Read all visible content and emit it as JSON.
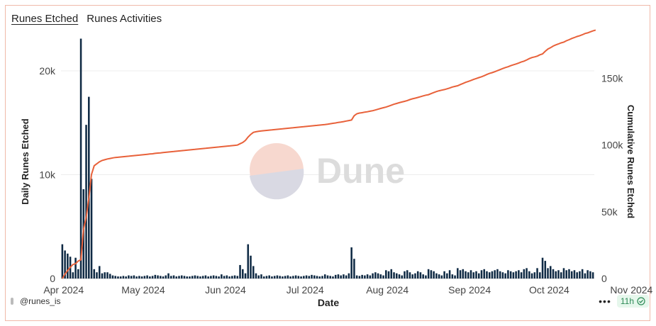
{
  "tabs": [
    {
      "label": "Runes Etched",
      "active": true
    },
    {
      "label": "Runes Activities",
      "active": false
    }
  ],
  "footer": {
    "handle": "@runes_is",
    "more": "•••",
    "freshness": "11h"
  },
  "watermark": "Dune",
  "chart_data": {
    "type": "bar+line",
    "xlabel": "Date",
    "ylabel_left": "Daily Runes Etched",
    "ylabel_right": "Cumulative Runes Etched",
    "ylim_left": [
      0,
      23000
    ],
    "ylim_right": [
      0,
      179000
    ],
    "yticks_left": [
      "0",
      "10k",
      "20k"
    ],
    "yticks_right": [
      "0",
      "50k",
      "100k",
      "150k"
    ],
    "xticks": [
      "Apr 2024",
      "May 2024",
      "Jun 2024",
      "Jul 2024",
      "Aug 2024",
      "Sep 2024",
      "Oct 2024",
      "Nov 2024"
    ],
    "x_start": "2024-03-31",
    "bar_color": "#0f2a44",
    "line_color": "#e8613a",
    "daily": [
      3300,
      2700,
      2400,
      2100,
      600,
      2000,
      900,
      23100,
      8600,
      14800,
      17500,
      9600,
      900,
      600,
      1200,
      500,
      600,
      600,
      450,
      300,
      250,
      200,
      200,
      250,
      200,
      300,
      250,
      300,
      200,
      250,
      200,
      250,
      300,
      200,
      250,
      350,
      300,
      250,
      200,
      300,
      500,
      250,
      300,
      200,
      250,
      300,
      250,
      200,
      200,
      250,
      300,
      250,
      200,
      250,
      300,
      200,
      250,
      300,
      250,
      200,
      400,
      250,
      300,
      200,
      250,
      300,
      250,
      1300,
      900,
      500,
      3300,
      2200,
      1200,
      500,
      300,
      400,
      200,
      250,
      300,
      200,
      250,
      300,
      250,
      200,
      250,
      300,
      200,
      250,
      300,
      250,
      200,
      250,
      300,
      250,
      350,
      300,
      250,
      200,
      250,
      400,
      300,
      250,
      200,
      350,
      400,
      300,
      400,
      300,
      500,
      3000,
      1900,
      300,
      250,
      350,
      300,
      400,
      300,
      500,
      600,
      500,
      400,
      300,
      800,
      700,
      900,
      600,
      500,
      400,
      300,
      700,
      800,
      600,
      400,
      500,
      700,
      600,
      400,
      300,
      900,
      800,
      700,
      500,
      400,
      300,
      700,
      500,
      800,
      400,
      300,
      1000,
      800,
      900,
      700,
      600,
      800,
      600,
      700,
      500,
      800,
      900,
      700,
      600,
      700,
      800,
      900,
      700,
      600,
      500,
      800,
      700,
      600,
      700,
      800,
      600,
      900,
      1000,
      700,
      500,
      600,
      1000,
      600,
      2000,
      1700,
      1000,
      1200,
      900,
      700,
      800,
      600,
      1000,
      800,
      900,
      700,
      800,
      600,
      700,
      900,
      500,
      800,
      700,
      600
    ],
    "cumulative": [
      0,
      3300,
      6000,
      8400,
      10500,
      11100,
      13100,
      14000,
      37100,
      45700,
      60500,
      78000,
      84500,
      86000,
      87500,
      88500,
      89000,
      89600,
      90000,
      90400,
      90700,
      90900,
      91100,
      91300,
      91500,
      91700,
      91900,
      92100,
      92300,
      92500,
      92700,
      92900,
      93100,
      93300,
      93500,
      93800,
      94000,
      94200,
      94400,
      94600,
      94800,
      95000,
      95200,
      95400,
      95600,
      95800,
      96000,
      96200,
      96400,
      96600,
      96800,
      97000,
      97200,
      97400,
      97600,
      97800,
      98000,
      98200,
      98400,
      98600,
      98800,
      99000,
      99200,
      99400,
      99600,
      99800,
      100000,
      101000,
      102000,
      103500,
      106000,
      108000,
      109500,
      110000,
      110300,
      110600,
      110800,
      111000,
      111200,
      111400,
      111600,
      111800,
      112000,
      112200,
      112400,
      112600,
      112800,
      113000,
      113200,
      113400,
      113600,
      113800,
      114000,
      114200,
      114400,
      114600,
      114800,
      115000,
      115200,
      115400,
      115700,
      116000,
      116300,
      116600,
      117000,
      117300,
      117600,
      118000,
      118400,
      118800,
      122000,
      123500,
      124000,
      124300,
      124700,
      125000,
      125400,
      125800,
      126300,
      126900,
      127500,
      128000,
      128500,
      129200,
      129900,
      130600,
      131200,
      131800,
      132300,
      132800,
      133400,
      134100,
      134700,
      135200,
      135700,
      136300,
      136900,
      137400,
      137800,
      138600,
      139400,
      140100,
      140700,
      141200,
      141600,
      142200,
      142800,
      143500,
      144000,
      144500,
      145400,
      146200,
      147000,
      147700,
      148400,
      149200,
      149900,
      150600,
      151200,
      152000,
      152900,
      153700,
      154300,
      155000,
      155800,
      156600,
      157400,
      158100,
      158700,
      159500,
      160200,
      160800,
      161500,
      162300,
      162900,
      163800,
      164800,
      165600,
      166100,
      166700,
      167700,
      168300,
      170300,
      172000,
      173000,
      174200,
      175100,
      175800,
      176600,
      177200,
      178200,
      179000,
      179900,
      180600,
      181400,
      182000,
      182700,
      183600,
      184100,
      184900,
      185600,
      186200
    ]
  }
}
